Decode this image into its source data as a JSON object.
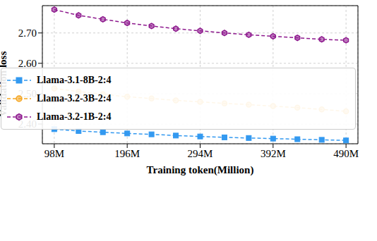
{
  "chart_data": {
    "type": "line",
    "x_label": "Training token(Million)",
    "y_label": "Validation loss",
    "x": [
      98,
      130.67,
      163.33,
      196,
      228.67,
      261.33,
      294,
      326.67,
      359.33,
      392,
      424.67,
      457.33,
      490
    ],
    "series": [
      {
        "name": "Llama-3.1-8B-2:4",
        "color": "#3399f0",
        "marker": "square",
        "line_style": "dashed",
        "values": [
          2.383,
          2.377,
          2.373,
          2.369,
          2.366,
          2.362,
          2.359,
          2.356,
          2.354,
          2.352,
          2.35,
          2.348,
          2.346
        ]
      },
      {
        "name": "Llama-3.2-3B-2:4",
        "color": "#f5a623",
        "marker": "circle",
        "line_style": "dashed",
        "values": [
          2.517,
          2.507,
          2.498,
          2.49,
          2.484,
          2.478,
          2.473,
          2.468,
          2.464,
          2.459,
          2.454,
          2.448,
          2.442
        ]
      },
      {
        "name": "Llama-3.2-1B-2:4",
        "color": "#8e1a8e",
        "marker": "hexagon",
        "line_style": "dashed",
        "values": [
          2.777,
          2.758,
          2.745,
          2.733,
          2.723,
          2.714,
          2.707,
          2.7,
          2.694,
          2.689,
          2.684,
          2.679,
          2.676
        ]
      }
    ],
    "xlim": [
      82,
      506
    ],
    "xticks": [
      {
        "value": 98,
        "label": "98M"
      },
      {
        "value": 196,
        "label": "196M"
      },
      {
        "value": 294,
        "label": "294M"
      },
      {
        "value": 392,
        "label": "392M"
      },
      {
        "value": 490,
        "label": "490M"
      }
    ],
    "ylim": [
      2.335,
      2.79
    ],
    "yticks": [
      {
        "value": 2.4,
        "label": "2.40"
      },
      {
        "value": 2.5,
        "label": "2.50"
      },
      {
        "value": 2.6,
        "label": "2.60"
      },
      {
        "value": 2.7,
        "label": "2.70"
      }
    ],
    "grid": true,
    "legend": "center right"
  }
}
